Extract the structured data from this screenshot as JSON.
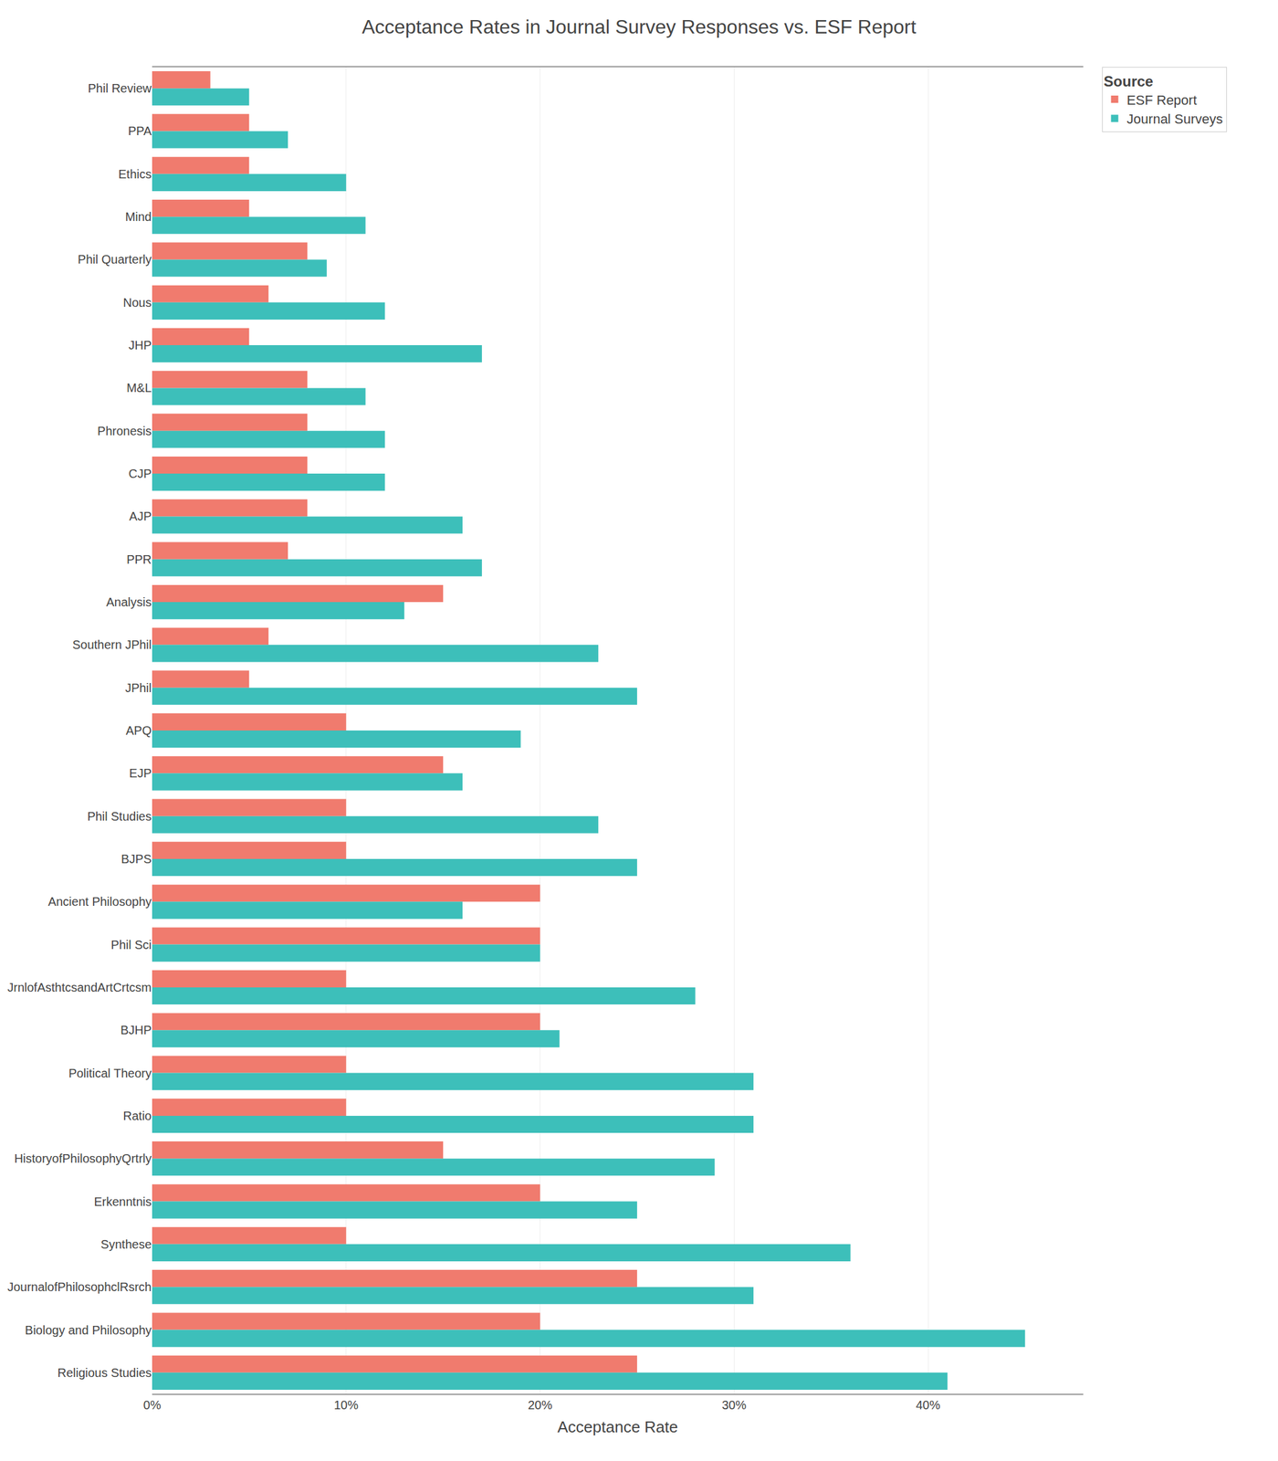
{
  "chart_data": {
    "type": "bar",
    "orientation": "horizontal",
    "title": "Acceptance Rates in Journal Survey Responses vs. ESF Report",
    "xlabel": "Acceptance Rate",
    "categories": [
      "Phil Review",
      "PPA",
      "Ethics",
      "Mind",
      "Phil Quarterly",
      "Nous",
      "JHP",
      "M&L",
      "Phronesis",
      "CJP",
      "AJP",
      "PPR",
      "Analysis",
      "Southern JPhil",
      "JPhil",
      "APQ",
      "EJP",
      "Phil Studies",
      "BJPS",
      "Ancient Philosophy",
      "Phil Sci",
      "JrnlofAsthtcsandArtCrtcsm",
      "BJHP",
      "Political Theory",
      "Ratio",
      "HistoryofPhilosophyQrtrly",
      "Erkenntnis",
      "Synthese",
      "JournalofPhilosophclRsrch",
      "Biology and Philosophy",
      "Religious Studies"
    ],
    "series": [
      {
        "name": "ESF Report",
        "color": "#F07B6E",
        "values": [
          3,
          5,
          5,
          5,
          8,
          6,
          5,
          8,
          8,
          8,
          8,
          7,
          15,
          6,
          5,
          10,
          15,
          10,
          10,
          20,
          20,
          10,
          20,
          10,
          10,
          15,
          20,
          10,
          25,
          20,
          25
        ]
      },
      {
        "name": "Journal Surveys",
        "color": "#3DBFBA",
        "values": [
          5,
          7,
          10,
          11,
          9,
          12,
          17,
          11,
          12,
          12,
          16,
          17,
          13,
          23,
          25,
          19,
          16,
          23,
          25,
          16,
          20,
          28,
          21,
          31,
          31,
          29,
          25,
          36,
          31,
          45,
          41
        ]
      }
    ],
    "xlim": [
      0,
      48
    ],
    "xticks": [
      {
        "value": 0,
        "label": "0%"
      },
      {
        "value": 10,
        "label": "10%"
      },
      {
        "value": 20,
        "label": "20%"
      },
      {
        "value": 30,
        "label": "30%"
      },
      {
        "value": 40,
        "label": "40%"
      }
    ],
    "grid": true,
    "legend": "right",
    "legend_title": "Source"
  }
}
